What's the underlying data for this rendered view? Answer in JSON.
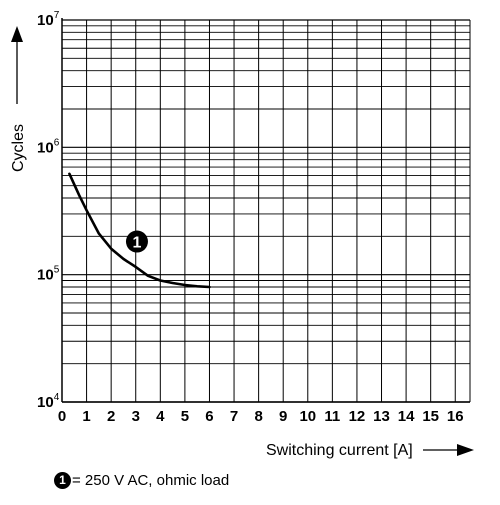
{
  "chart_data": {
    "type": "line",
    "y_scale": "log",
    "xlim": [
      0,
      16.6
    ],
    "ylim": [
      10000,
      10000000
    ],
    "grid": true,
    "x_ticks": [
      "0",
      "1",
      "2",
      "3",
      "4",
      "5",
      "6",
      "7",
      "8",
      "9",
      "10",
      "11",
      "12",
      "13",
      "14",
      "15",
      "16"
    ],
    "y_ticks": [
      {
        "base": "10",
        "exp": "4",
        "value": 10000
      },
      {
        "base": "10",
        "exp": "5",
        "value": 100000
      },
      {
        "base": "10",
        "exp": "6",
        "value": 1000000
      },
      {
        "base": "10",
        "exp": "7",
        "value": 10000000
      }
    ],
    "xlabel": "Switching current [A]",
    "ylabel": "Cycles",
    "series": [
      {
        "marker": "1",
        "color": "#000000",
        "points": [
          [
            0.3,
            620000
          ],
          [
            0.7,
            420000
          ],
          [
            1.0,
            320000
          ],
          [
            1.5,
            210000
          ],
          [
            2.0,
            160000
          ],
          [
            2.5,
            133000
          ],
          [
            3.0,
            115000
          ],
          [
            3.5,
            98000
          ],
          [
            4.0,
            90000
          ],
          [
            4.5,
            86000
          ],
          [
            5.0,
            83000
          ],
          [
            5.5,
            81000
          ],
          [
            6.0,
            80000
          ]
        ]
      }
    ],
    "annotation": {
      "marker": "1",
      "x": 3.05,
      "y": 182000
    }
  },
  "note": {
    "marker": "1",
    "text": "= 250 V AC, ohmic load"
  }
}
